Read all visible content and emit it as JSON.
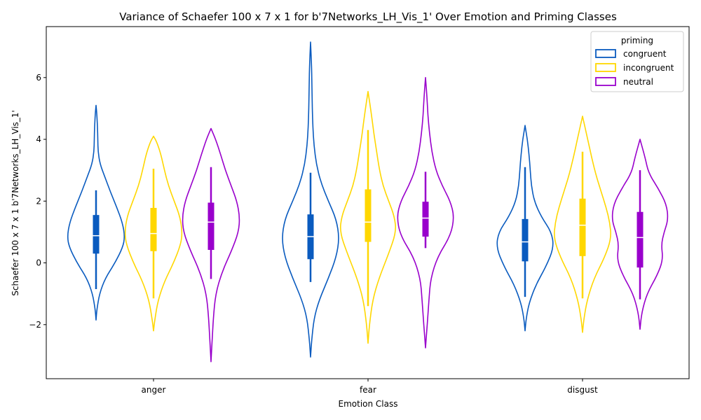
{
  "chart_data": {
    "type": "violin",
    "title": "Variance of Schaefer 100 x 7 x 1 for b'7Networks_LH_Vis_1' Over Emotion and Priming Classes",
    "xlabel": "Emotion Class",
    "ylabel": "Schaefer 100 x 7 x 1 b'7Networks_LH_Vis_1'",
    "categories": [
      "anger",
      "fear",
      "disgust"
    ],
    "ylim": [
      -3.75,
      7.65
    ],
    "yticks": [
      -2,
      0,
      2,
      4,
      6
    ],
    "legend": {
      "title": "priming",
      "position": "top-right"
    },
    "series": [
      {
        "name": "congruent",
        "color": "#0a5bbf",
        "violins": [
          {
            "min": -1.85,
            "max": 5.1,
            "q1": 0.3,
            "median": 0.88,
            "q3": 1.55,
            "wlo": -0.85,
            "whi": 2.35,
            "profile": [
              [
                -1.85,
                0.0
              ],
              [
                -1.5,
                0.03
              ],
              [
                -1.0,
                0.12
              ],
              [
                -0.5,
                0.32
              ],
              [
                0.0,
                0.66
              ],
              [
                0.5,
                0.93
              ],
              [
                0.85,
                1.0
              ],
              [
                1.3,
                0.92
              ],
              [
                1.8,
                0.72
              ],
              [
                2.3,
                0.5
              ],
              [
                2.8,
                0.3
              ],
              [
                3.2,
                0.14
              ],
              [
                3.6,
                0.07
              ],
              [
                4.0,
                0.06
              ],
              [
                4.4,
                0.05
              ],
              [
                4.8,
                0.03
              ],
              [
                5.1,
                0.0
              ]
            ]
          },
          {
            "min": -3.05,
            "max": 7.15,
            "q1": 0.12,
            "median": 0.85,
            "q3": 1.57,
            "wlo": -0.62,
            "whi": 2.92,
            "profile": [
              [
                -3.05,
                0.0
              ],
              [
                -2.5,
                0.04
              ],
              [
                -1.8,
                0.12
              ],
              [
                -1.2,
                0.3
              ],
              [
                -0.5,
                0.62
              ],
              [
                0.2,
                0.9
              ],
              [
                0.8,
                1.0
              ],
              [
                1.4,
                0.9
              ],
              [
                2.0,
                0.62
              ],
              [
                2.6,
                0.36
              ],
              [
                3.2,
                0.2
              ],
              [
                3.8,
                0.12
              ],
              [
                4.4,
                0.08
              ],
              [
                5.0,
                0.06
              ],
              [
                5.6,
                0.05
              ],
              [
                6.3,
                0.04
              ],
              [
                7.15,
                0.0
              ]
            ]
          },
          {
            "min": -2.2,
            "max": 4.45,
            "q1": 0.05,
            "median": 0.68,
            "q3": 1.42,
            "wlo": -1.1,
            "whi": 3.1,
            "profile": [
              [
                -2.2,
                0.0
              ],
              [
                -1.8,
                0.04
              ],
              [
                -1.3,
                0.14
              ],
              [
                -0.7,
                0.38
              ],
              [
                -0.1,
                0.74
              ],
              [
                0.5,
                1.0
              ],
              [
                1.0,
                0.92
              ],
              [
                1.5,
                0.56
              ],
              [
                2.0,
                0.32
              ],
              [
                2.5,
                0.22
              ],
              [
                3.0,
                0.18
              ],
              [
                3.5,
                0.14
              ],
              [
                4.0,
                0.08
              ],
              [
                4.45,
                0.0
              ]
            ]
          }
        ]
      },
      {
        "name": "incongruent",
        "color": "#ffd700",
        "violins": [
          {
            "min": -2.2,
            "max": 4.1,
            "q1": 0.38,
            "median": 0.95,
            "q3": 1.78,
            "wlo": -1.15,
            "whi": 3.05,
            "profile": [
              [
                -2.2,
                0.0
              ],
              [
                -1.8,
                0.05
              ],
              [
                -1.2,
                0.16
              ],
              [
                -0.6,
                0.38
              ],
              [
                0.0,
                0.7
              ],
              [
                0.6,
                0.95
              ],
              [
                1.0,
                1.0
              ],
              [
                1.5,
                0.92
              ],
              [
                2.0,
                0.72
              ],
              [
                2.5,
                0.52
              ],
              [
                3.0,
                0.38
              ],
              [
                3.5,
                0.26
              ],
              [
                3.9,
                0.12
              ],
              [
                4.1,
                0.0
              ]
            ]
          },
          {
            "min": -2.6,
            "max": 5.55,
            "q1": 0.68,
            "median": 1.32,
            "q3": 2.38,
            "wlo": -1.4,
            "whi": 4.3,
            "profile": [
              [
                -2.6,
                0.0
              ],
              [
                -2.0,
                0.05
              ],
              [
                -1.2,
                0.16
              ],
              [
                -0.5,
                0.38
              ],
              [
                0.3,
                0.72
              ],
              [
                1.0,
                0.98
              ],
              [
                1.5,
                0.92
              ],
              [
                2.0,
                0.72
              ],
              [
                2.5,
                0.52
              ],
              [
                3.0,
                0.4
              ],
              [
                3.6,
                0.3
              ],
              [
                4.2,
                0.2
              ],
              [
                4.8,
                0.12
              ],
              [
                5.55,
                0.0
              ]
            ]
          },
          {
            "min": -2.25,
            "max": 4.75,
            "q1": 0.22,
            "median": 1.22,
            "q3": 2.08,
            "wlo": -1.15,
            "whi": 3.6,
            "profile": [
              [
                -2.25,
                0.0
              ],
              [
                -1.8,
                0.05
              ],
              [
                -1.2,
                0.16
              ],
              [
                -0.5,
                0.4
              ],
              [
                0.2,
                0.78
              ],
              [
                0.8,
                1.0
              ],
              [
                1.3,
                0.95
              ],
              [
                1.8,
                0.82
              ],
              [
                2.3,
                0.65
              ],
              [
                2.8,
                0.48
              ],
              [
                3.4,
                0.32
              ],
              [
                4.0,
                0.18
              ],
              [
                4.5,
                0.06
              ],
              [
                4.75,
                0.0
              ]
            ]
          }
        ]
      },
      {
        "name": "neutral",
        "color": "#9900cc",
        "violins": [
          {
            "min": -3.2,
            "max": 4.35,
            "q1": 0.42,
            "median": 1.32,
            "q3": 1.95,
            "wlo": -0.52,
            "whi": 3.1,
            "profile": [
              [
                -3.2,
                0.0
              ],
              [
                -2.5,
                0.04
              ],
              [
                -1.8,
                0.08
              ],
              [
                -1.0,
                0.16
              ],
              [
                -0.3,
                0.38
              ],
              [
                0.4,
                0.72
              ],
              [
                1.0,
                0.96
              ],
              [
                1.5,
                1.0
              ],
              [
                2.0,
                0.9
              ],
              [
                2.5,
                0.7
              ],
              [
                3.0,
                0.5
              ],
              [
                3.5,
                0.34
              ],
              [
                4.0,
                0.16
              ],
              [
                4.35,
                0.0
              ]
            ]
          },
          {
            "min": -2.75,
            "max": 6.0,
            "q1": 0.85,
            "median": 1.45,
            "q3": 1.98,
            "wlo": 0.48,
            "whi": 2.95,
            "profile": [
              [
                -2.75,
                0.0
              ],
              [
                -2.0,
                0.06
              ],
              [
                -1.2,
                0.12
              ],
              [
                -0.5,
                0.18
              ],
              [
                0.2,
                0.42
              ],
              [
                0.9,
                0.88
              ],
              [
                1.5,
                1.0
              ],
              [
                2.0,
                0.86
              ],
              [
                2.5,
                0.58
              ],
              [
                3.0,
                0.36
              ],
              [
                3.6,
                0.22
              ],
              [
                4.2,
                0.14
              ],
              [
                4.8,
                0.08
              ],
              [
                5.4,
                0.05
              ],
              [
                6.0,
                0.0
              ]
            ]
          },
          {
            "min": -2.15,
            "max": 4.0,
            "q1": -0.15,
            "median": 0.82,
            "q3": 1.65,
            "wlo": -1.18,
            "whi": 3.0,
            "profile": [
              [
                -2.15,
                0.0
              ],
              [
                -1.6,
                0.06
              ],
              [
                -1.0,
                0.24
              ],
              [
                -0.4,
                0.6
              ],
              [
                0.1,
                0.8
              ],
              [
                0.6,
                0.74
              ],
              [
                1.0,
                0.84
              ],
              [
                1.4,
                0.98
              ],
              [
                1.9,
                0.92
              ],
              [
                2.4,
                0.64
              ],
              [
                2.9,
                0.3
              ],
              [
                3.4,
                0.18
              ],
              [
                4.0,
                0.0
              ]
            ]
          }
        ]
      }
    ]
  }
}
